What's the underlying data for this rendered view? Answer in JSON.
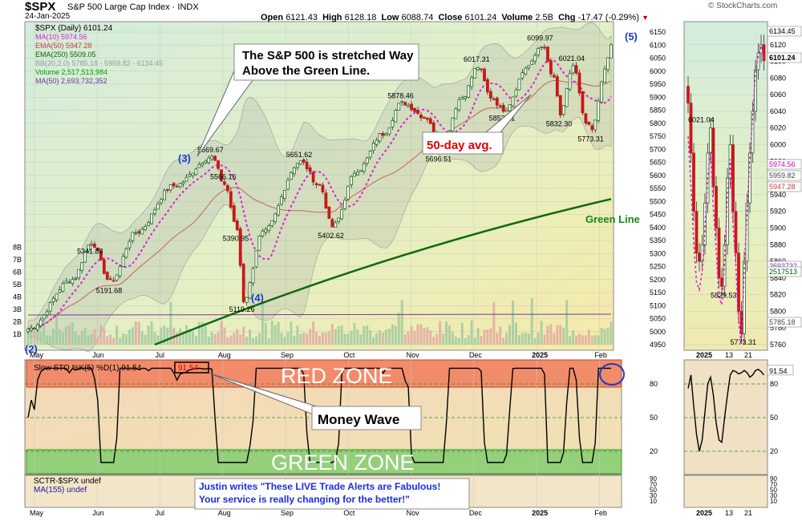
{
  "header": {
    "symbol": "$SPX",
    "name": "S&P 500 Large Cap Index",
    "exchange": "INDX",
    "date": "24-Jan-2025",
    "open_label": "Open",
    "open": "6121.43",
    "high_label": "High",
    "high": "6128.18",
    "low_label": "Low",
    "low": "6088.74",
    "close_label": "Close",
    "close": "6101.24",
    "volume_label": "Volume",
    "volume": "2.5B",
    "chg_label": "Chg",
    "chg": "-17.47 (-0.29%)",
    "chg_icon": "down-triangle-icon",
    "copyright": "© StockCharts.com"
  },
  "legend": {
    "title": "$SPX (Daily) 6101.24",
    "items": [
      {
        "text": "MA(10) 5974.56",
        "color": "#e020d0"
      },
      {
        "text": "EMA(50) 5947.28",
        "color": "#c04040"
      },
      {
        "text": "EMA(250) 5509.05",
        "color": "#006400"
      },
      {
        "text": "BB(20,2.0) 5785.18 - 5959.82 - 6134.45",
        "color": "#999999"
      },
      {
        "text": "Volume 2,517,513,984",
        "color": "#00a000"
      },
      {
        "text": "MA(50) 2,693,732,352",
        "color": "#7030a0"
      }
    ]
  },
  "annotations": {
    "callout_main": [
      "The S&P 500 is stretched Way",
      "Above the Green Line."
    ],
    "callout_50day": "50-day avg.",
    "green_line": "Green Line",
    "wave_labels": [
      "(2)",
      "(3)",
      "(4)",
      "(5)"
    ],
    "red_zone": "RED ZONE",
    "green_zone": "GREEN ZONE",
    "money_wave": "Money Wave",
    "testimonial": [
      "Justin writes \"These LIVE Trade Alerts are Fabulous!",
      "Your service is really changing for the better!\""
    ]
  },
  "chart_data": [
    {
      "type": "candlestick",
      "title": "$SPX (Daily) 6101.24",
      "x_months": [
        "May",
        "Jun",
        "Jul",
        "Aug",
        "Sep",
        "Oct",
        "Nov",
        "Dec",
        "2025",
        "Feb"
      ],
      "ylim": [
        4950,
        6150
      ],
      "y_ticks": [
        4950,
        5000,
        5050,
        5100,
        5150,
        5200,
        5250,
        5300,
        5350,
        5400,
        5450,
        5500,
        5550,
        5600,
        5650,
        5700,
        5750,
        5800,
        5850,
        5900,
        5950,
        6000,
        6050,
        6100,
        6150
      ],
      "volume_ticks": [
        "1B",
        "2B",
        "3B",
        "4B",
        "5B",
        "6B",
        "7B",
        "8B"
      ],
      "price_labels": [
        {
          "text": "5341.88",
          "value": 5341.88
        },
        {
          "text": "5191.68",
          "value": 5191.68
        },
        {
          "text": "5669.67",
          "value": 5669.67
        },
        {
          "text": "5566.16",
          "value": 5566.16
        },
        {
          "text": "5390.95",
          "value": 5390.95
        },
        {
          "text": "5119.26",
          "value": 5119.26
        },
        {
          "text": "5651.62",
          "value": 5651.62
        },
        {
          "text": "5402.62",
          "value": 5402.62
        },
        {
          "text": "5878.46",
          "value": 5878.46
        },
        {
          "text": "5696.51",
          "value": 5696.51
        },
        {
          "text": "6017.31",
          "value": 6017.31
        },
        {
          "text": "5853.01",
          "value": 5853.01
        },
        {
          "text": "6099.97",
          "value": 6099.97
        },
        {
          "text": "6021.04",
          "value": 6021.04
        },
        {
          "text": "5832.30",
          "value": 5832.3
        },
        {
          "text": "5773.31",
          "value": 5773.31
        }
      ],
      "last_close": 6101.24,
      "ema250_start": 4950,
      "ema250_end": 5509.05
    },
    {
      "type": "line",
      "title": "Slow STO %K(5) %D(1) 91.54",
      "current": "91.54",
      "ylim": [
        0,
        100
      ],
      "y_ticks": [
        20,
        50,
        80
      ],
      "overbought": 80,
      "oversold": 20
    },
    {
      "type": "line",
      "title": "SCTR-$SPX undef",
      "subtitle": "MA(155) undef",
      "y_ticks": [
        "10",
        "30",
        "50",
        "70",
        "90"
      ]
    },
    {
      "type": "candlestick",
      "title": "zoom",
      "x_labels": [
        "2025",
        "13",
        "21"
      ],
      "ylim": [
        5760,
        6140
      ],
      "y_ticks": [
        5760,
        5780,
        5800,
        5820,
        5840,
        5860,
        5880,
        5900,
        5920,
        5940,
        5960,
        5980,
        6000,
        6020,
        6040,
        6060,
        6080,
        6100,
        6120
      ],
      "price_labels": [
        {
          "text": "6021.04",
          "value": 6021.04
        },
        {
          "text": "5829.53",
          "value": 5829.53
        },
        {
          "text": "5773.31",
          "value": 5773.31
        }
      ],
      "right_tags": [
        "6134.45",
        "6101.24",
        "5974.56",
        "5959.82",
        "5947.28",
        "2693732",
        "2517513",
        "5785.18"
      ],
      "sto_value": "91.54",
      "sto_ticks": [
        "80",
        "50",
        "20"
      ],
      "sctr_ticks": [
        "10",
        "30",
        "50",
        "70",
        "90"
      ]
    }
  ]
}
